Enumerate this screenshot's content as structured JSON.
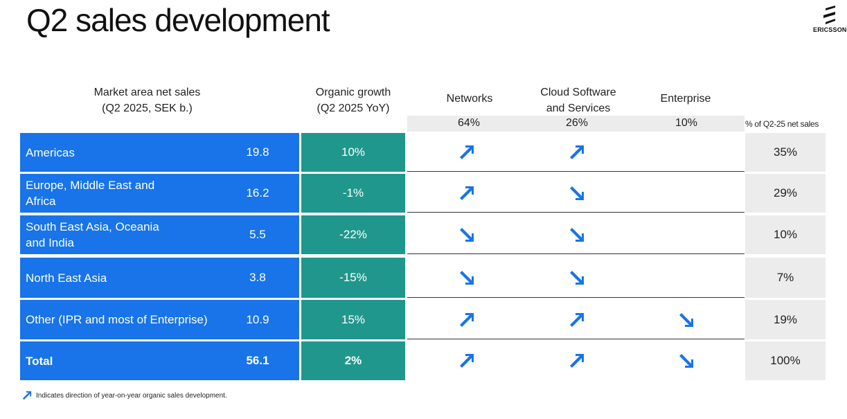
{
  "title": "Q2 sales development",
  "logo": {
    "text": "ERICSSON"
  },
  "headers": {
    "market_area": "Market area net sales",
    "market_area_sub": "(Q2 2025, SEK b.)",
    "organic": "Organic growth",
    "organic_sub": "(Q2 2025 YoY)",
    "networks": "Networks",
    "cloud_line1": "Cloud Software",
    "cloud_line2": "and Services",
    "enterprise": "Enterprise"
  },
  "segment_shares": {
    "networks": "64%",
    "cloud": "26%",
    "enterprise": "10%"
  },
  "share_note": "% of Q2-25 net sales",
  "rows": [
    {
      "region": "Americas",
      "sales": "19.8",
      "growth": "10%",
      "networks": "up",
      "cloud": "up",
      "enterprise": "",
      "share": "35%"
    },
    {
      "region": "Europe, Middle East and Africa",
      "sales": "16.2",
      "growth": "-1%",
      "networks": "up",
      "cloud": "down",
      "enterprise": "",
      "share": "29%"
    },
    {
      "region": "South East Asia, Oceania and India",
      "sales": "5.5",
      "growth": "-22%",
      "networks": "down",
      "cloud": "down",
      "enterprise": "",
      "share": "10%"
    },
    {
      "region": "North East Asia",
      "sales": "3.8",
      "growth": "-15%",
      "networks": "down",
      "cloud": "down",
      "enterprise": "",
      "share": "7%"
    },
    {
      "region": "Other (IPR and most of Enterprise)",
      "sales": "10.9",
      "growth": "15%",
      "networks": "up",
      "cloud": "up",
      "enterprise": "down",
      "share": "19%"
    },
    {
      "region": "Total",
      "sales": "56.1",
      "growth": "2%",
      "networks": "up",
      "cloud": "up",
      "enterprise": "down",
      "share": "100%"
    }
  ],
  "footnote": "Indicates direction of year-on-year organic sales development.",
  "colors": {
    "blue": "#1874e8",
    "green": "#20978d",
    "grey": "#ececec",
    "arrow": "#1874e8"
  }
}
